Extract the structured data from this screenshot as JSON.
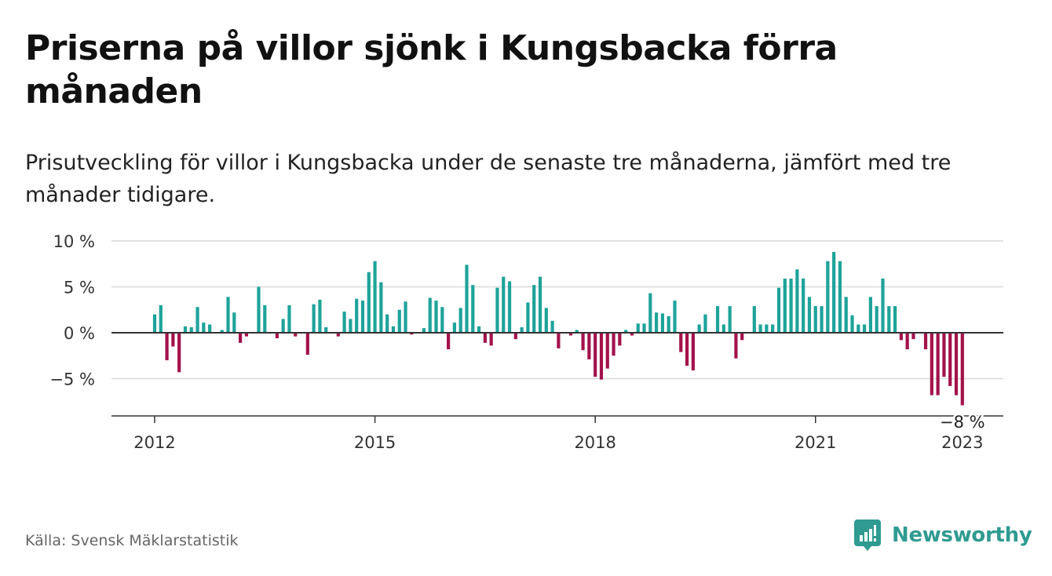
{
  "header": {
    "title": "Priserna på villor sjönk i Kungsbacka förra månaden",
    "subtitle": "Prisutveckling för villor i Kungsbacka under de senaste tre månaderna, jämfört med tre månader tidigare."
  },
  "footer": {
    "source": "Källa: Svensk Mäklarstatistik",
    "brand": "Newsworthy"
  },
  "colors": {
    "positive": "#1ea39a",
    "negative": "#a3124b",
    "grid": "#d9d9d9",
    "zero_line": "#333333",
    "brand": "#2f9b91"
  },
  "chart_data": {
    "type": "bar",
    "title": "Priserna på villor sjönk i Kungsbacka förra månaden",
    "subtitle": "Prisutveckling för villor i Kungsbacka under de senaste tre månaderna, jämfört med tre månader tidigare.",
    "xlabel": "",
    "ylabel": "",
    "x_start": "2012-01",
    "ylim": [
      -9,
      10
    ],
    "y_ticks": [
      10,
      5,
      0,
      -5
    ],
    "y_tick_labels": [
      "10 %",
      "5 %",
      "0 %",
      "−5 %"
    ],
    "x_tick_labels": [
      "2012",
      "2015",
      "2018",
      "2021",
      "2023"
    ],
    "x_tick_dates": [
      "2012-01",
      "2015-01",
      "2018-01",
      "2021-01",
      "2023-01"
    ],
    "last_value_label": "−8 %",
    "grid": true,
    "legend": "none",
    "values": [
      2.0,
      3.0,
      -3.0,
      -1.5,
      -4.3,
      0.7,
      0.6,
      2.8,
      1.1,
      0.9,
      0.0,
      0.3,
      3.9,
      2.2,
      -1.1,
      -0.4,
      0.0,
      5.0,
      3.0,
      0.0,
      -0.6,
      1.5,
      3.0,
      -0.4,
      0.0,
      -2.4,
      3.1,
      3.6,
      0.6,
      0.0,
      -0.4,
      2.3,
      1.5,
      3.7,
      3.5,
      6.6,
      7.8,
      5.5,
      2.0,
      0.7,
      2.5,
      3.4,
      -0.2,
      0.0,
      0.5,
      3.8,
      3.5,
      2.8,
      -1.8,
      1.1,
      2.7,
      7.4,
      5.2,
      0.7,
      -1.1,
      -1.4,
      4.9,
      6.1,
      5.6,
      -0.7,
      0.6,
      3.3,
      5.2,
      6.1,
      2.7,
      1.3,
      -1.7,
      0.0,
      -0.3,
      0.3,
      -1.9,
      -2.9,
      -4.8,
      -5.1,
      -3.9,
      -2.5,
      -1.4,
      0.3,
      -0.3,
      1.0,
      1.0,
      4.3,
      2.2,
      2.1,
      1.8,
      3.5,
      -2.1,
      -3.6,
      -4.1,
      0.9,
      2.0,
      0.0,
      2.9,
      0.9,
      2.9,
      -2.8,
      -0.8,
      0.0,
      2.9,
      0.9,
      0.9,
      0.9,
      4.9,
      5.9,
      5.9,
      6.9,
      5.9,
      3.9,
      2.9,
      2.9,
      7.8,
      8.8,
      7.8,
      3.9,
      1.9,
      0.9,
      0.9,
      3.9,
      2.9,
      5.9,
      2.9,
      2.9,
      -0.8,
      -1.8,
      -0.7,
      0.0,
      -1.8,
      -6.8,
      -6.8,
      -4.8,
      -5.8,
      -6.8,
      -7.9
    ]
  }
}
